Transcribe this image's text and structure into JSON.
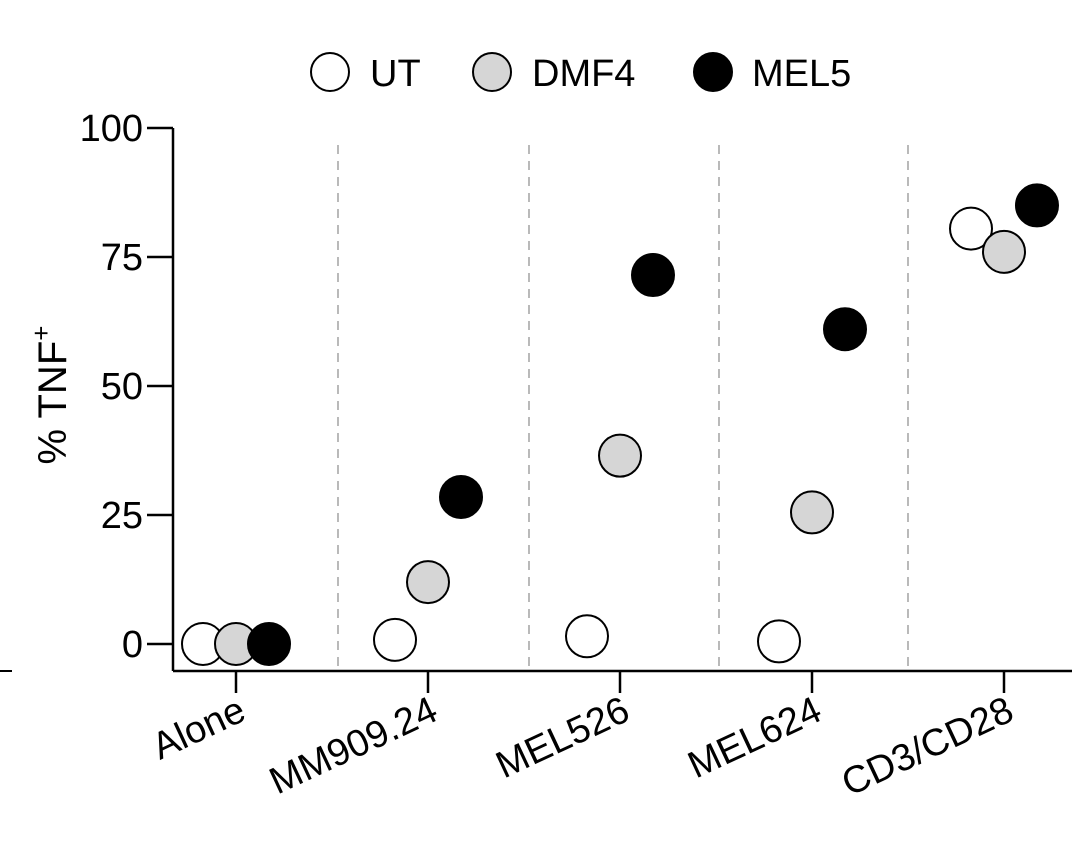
{
  "chart_data": {
    "type": "scatter",
    "title": "",
    "xlabel": "",
    "ylabel": "% TNF",
    "ylabel_superscript": "+",
    "ylim": [
      0,
      100
    ],
    "yticks": [
      "0",
      "25",
      "50",
      "75",
      "100"
    ],
    "categories": [
      "Alone",
      "MM909.24",
      "MEL526",
      "MEL624",
      "CD3/CD28"
    ],
    "grid": "dashed vertical separators between categories",
    "legend_position": "top",
    "series": [
      {
        "name": "UT",
        "color": "#ffffff",
        "values": [
          0,
          0.8,
          1.5,
          0.5,
          80.5
        ]
      },
      {
        "name": "DMF4",
        "color": "#d6d6d6",
        "values": [
          0,
          12,
          36.5,
          25.5,
          76
        ]
      },
      {
        "name": "MEL5",
        "color": "#000000",
        "values": [
          0,
          28.5,
          71.5,
          61,
          85
        ]
      }
    ]
  }
}
